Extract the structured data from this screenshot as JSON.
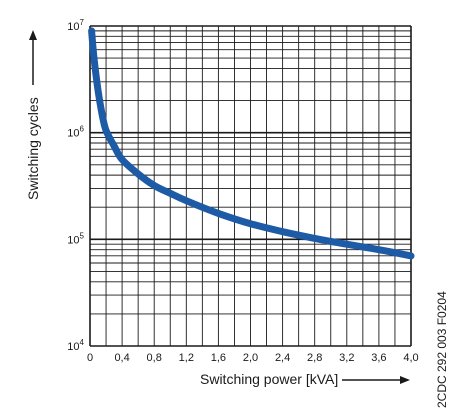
{
  "chart_data": {
    "type": "line",
    "title": "",
    "xlabel": "Switching power [kVA]",
    "ylabel": "Switching cycles",
    "x_scale": "linear",
    "y_scale": "log",
    "xlim": [
      0,
      4.0
    ],
    "ylim": [
      10000,
      10000000
    ],
    "x_ticks": [
      0,
      0.4,
      0.8,
      1.2,
      1.6,
      2.0,
      2.4,
      2.8,
      3.2,
      3.6,
      4.0
    ],
    "x_tick_labels": [
      "0",
      "0,4",
      "0,8",
      "1,2",
      "1,6",
      "2,0",
      "2,4",
      "2,8",
      "3,2",
      "3,6",
      "4,0"
    ],
    "y_ticks": [
      {
        "value": 10000,
        "base": "10",
        "exponent": "4"
      },
      {
        "value": 100000,
        "base": "10",
        "exponent": "5"
      },
      {
        "value": 1000000,
        "base": "10",
        "exponent": "6"
      },
      {
        "value": 10000000,
        "base": "10",
        "exponent": "7"
      }
    ],
    "grid": true,
    "series": [
      {
        "x": [
          0.02,
          0.05,
          0.1,
          0.15,
          0.2,
          0.3,
          0.4,
          0.6,
          0.8,
          1.0,
          1.2,
          1.6,
          2.0,
          2.4,
          2.8,
          3.2,
          3.6,
          4.0
        ],
        "y": [
          9000000,
          5000000,
          2500000,
          1500000,
          1050000,
          750000,
          560000,
          410000,
          320000,
          270000,
          230000,
          175000,
          140000,
          118000,
          102000,
          90000,
          80000,
          70000
        ]
      }
    ],
    "annotations": [
      "2CDC 292 003 F0204"
    ]
  },
  "colors": {
    "curve": "#1d5ba6",
    "grid": "#1a1a1a",
    "arrow": "#1a1a1a"
  }
}
